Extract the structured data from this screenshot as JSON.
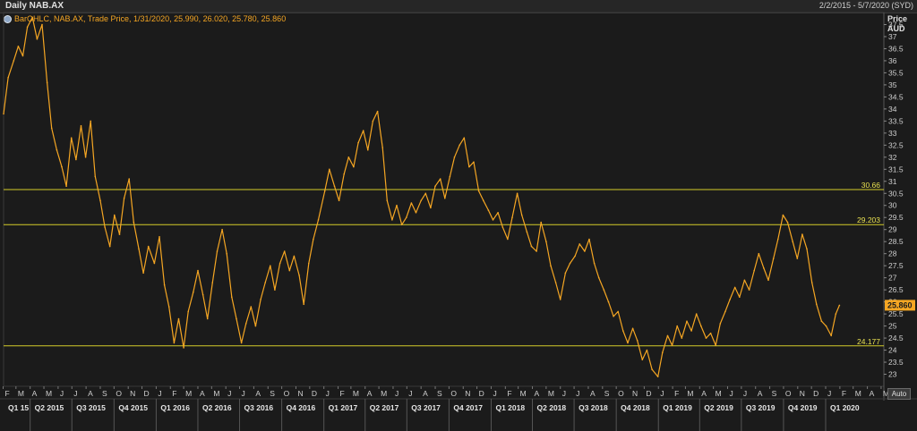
{
  "header": {
    "title": "Daily NAB.AX",
    "date_range": "2/2/2015 - 5/7/2020 (SYD)",
    "legend": "BarOHLC, NAB.AX, Trade Price, 1/31/2020, 25.990, 26.020, 25.780, 25.860",
    "axis_title_line1": "Price",
    "axis_title_line2": "AUD",
    "auto_label": "Auto"
  },
  "colors": {
    "background": "#1b1b1b",
    "price_line": "#f5a623",
    "horizontal_lines": "#d4cc2a",
    "last_price_badge": "#f5a623"
  },
  "chart_data": {
    "type": "line",
    "title": "Daily NAB.AX",
    "ylabel": "Price AUD",
    "ylim": [
      22.5,
      38
    ],
    "x_range": [
      "2015-02-02",
      "2020-05-07"
    ],
    "y_ticks": [
      "23",
      "23.5",
      "24",
      "24.5",
      "25",
      "25.5",
      "26",
      "26.5",
      "27",
      "27.5",
      "28",
      "28.5",
      "29",
      "29.5",
      "30",
      "30.5",
      "31",
      "31.5",
      "32",
      "32.5",
      "33",
      "33.5",
      "34",
      "34.5",
      "35",
      "35.5",
      "36",
      "36.5",
      "37",
      "37.5"
    ],
    "months": [
      "F",
      "M",
      "A",
      "M",
      "J",
      "J",
      "A",
      "S",
      "O",
      "N",
      "D",
      "J",
      "F",
      "M",
      "A",
      "M",
      "J",
      "J",
      "A",
      "S",
      "O",
      "N",
      "D",
      "J",
      "F",
      "M",
      "A",
      "M",
      "J",
      "J",
      "A",
      "S",
      "O",
      "N",
      "D",
      "J",
      "F",
      "M",
      "A",
      "M",
      "J",
      "J",
      "A",
      "S",
      "O",
      "N",
      "D",
      "J",
      "F",
      "M",
      "A",
      "M",
      "J",
      "J",
      "A",
      "S",
      "O",
      "N",
      "D",
      "J",
      "F",
      "M",
      "A",
      "M"
    ],
    "quarters": [
      "Q1 15",
      "Q2 2015",
      "Q3 2015",
      "Q4 2015",
      "Q1 2016",
      "Q2 2016",
      "Q3 2016",
      "Q4 2016",
      "Q1 2017",
      "Q2 2017",
      "Q3 2017",
      "Q4 2017",
      "Q1 2018",
      "Q2 2018",
      "Q3 2018",
      "Q4 2018",
      "Q1 2019",
      "Q2 2019",
      "Q3 2019",
      "Q4 2019",
      "Q1 2020"
    ],
    "horizontal_lines": [
      {
        "value": 30.66,
        "label": "30.66"
      },
      {
        "value": 29.203,
        "label": "29.203"
      },
      {
        "value": 24.177,
        "label": "24.177"
      }
    ],
    "last_value": {
      "value": 25.86,
      "label": "25.860"
    },
    "series": [
      {
        "values": [
          [
            "2015-02-02",
            33.8
          ],
          [
            "2015-02-12",
            35.3
          ],
          [
            "2015-02-24",
            36.0
          ],
          [
            "2015-03-06",
            36.6
          ],
          [
            "2015-03-16",
            36.2
          ],
          [
            "2015-03-26",
            37.4
          ],
          [
            "2015-04-06",
            37.8
          ],
          [
            "2015-04-16",
            36.9
          ],
          [
            "2015-04-27",
            37.5
          ],
          [
            "2015-05-08",
            35.1
          ],
          [
            "2015-05-18",
            33.2
          ],
          [
            "2015-05-29",
            32.3
          ],
          [
            "2015-06-09",
            31.6
          ],
          [
            "2015-06-19",
            30.8
          ],
          [
            "2015-06-30",
            32.8
          ],
          [
            "2015-07-10",
            31.9
          ],
          [
            "2015-07-21",
            33.3
          ],
          [
            "2015-07-31",
            32.0
          ],
          [
            "2015-08-11",
            33.5
          ],
          [
            "2015-08-21",
            31.2
          ],
          [
            "2015-09-01",
            30.2
          ],
          [
            "2015-09-11",
            29.1
          ],
          [
            "2015-09-22",
            28.3
          ],
          [
            "2015-10-02",
            29.6
          ],
          [
            "2015-10-13",
            28.8
          ],
          [
            "2015-10-23",
            30.3
          ],
          [
            "2015-11-03",
            31.1
          ],
          [
            "2015-11-13",
            29.3
          ],
          [
            "2015-11-24",
            28.2
          ],
          [
            "2015-12-04",
            27.2
          ],
          [
            "2015-12-15",
            28.3
          ],
          [
            "2015-12-28",
            27.6
          ],
          [
            "2016-01-08",
            28.7
          ],
          [
            "2016-01-19",
            26.7
          ],
          [
            "2016-01-29",
            25.8
          ],
          [
            "2016-02-09",
            24.3
          ],
          [
            "2016-02-19",
            25.3
          ],
          [
            "2016-03-01",
            24.1
          ],
          [
            "2016-03-11",
            25.6
          ],
          [
            "2016-03-22",
            26.4
          ],
          [
            "2016-04-01",
            27.3
          ],
          [
            "2016-04-12",
            26.3
          ],
          [
            "2016-04-22",
            25.3
          ],
          [
            "2016-05-03",
            26.8
          ],
          [
            "2016-05-13",
            28.1
          ],
          [
            "2016-05-24",
            29.0
          ],
          [
            "2016-06-03",
            28.0
          ],
          [
            "2016-06-14",
            26.2
          ],
          [
            "2016-06-24",
            25.3
          ],
          [
            "2016-07-05",
            24.3
          ],
          [
            "2016-07-15",
            25.1
          ],
          [
            "2016-07-26",
            25.8
          ],
          [
            "2016-08-05",
            25.0
          ],
          [
            "2016-08-16",
            26.1
          ],
          [
            "2016-08-26",
            26.8
          ],
          [
            "2016-09-06",
            27.5
          ],
          [
            "2016-09-16",
            26.5
          ],
          [
            "2016-09-27",
            27.6
          ],
          [
            "2016-10-07",
            28.1
          ],
          [
            "2016-10-18",
            27.3
          ],
          [
            "2016-10-28",
            27.9
          ],
          [
            "2016-11-08",
            27.1
          ],
          [
            "2016-11-18",
            25.9
          ],
          [
            "2016-11-29",
            27.6
          ],
          [
            "2016-12-09",
            28.6
          ],
          [
            "2016-12-20",
            29.4
          ],
          [
            "2017-01-03",
            30.6
          ],
          [
            "2017-01-13",
            31.5
          ],
          [
            "2017-01-24",
            30.8
          ],
          [
            "2017-02-03",
            30.2
          ],
          [
            "2017-02-14",
            31.3
          ],
          [
            "2017-02-24",
            32.0
          ],
          [
            "2017-03-07",
            31.6
          ],
          [
            "2017-03-17",
            32.6
          ],
          [
            "2017-03-28",
            33.1
          ],
          [
            "2017-04-07",
            32.3
          ],
          [
            "2017-04-18",
            33.5
          ],
          [
            "2017-04-28",
            33.9
          ],
          [
            "2017-05-09",
            32.4
          ],
          [
            "2017-05-19",
            30.2
          ],
          [
            "2017-05-30",
            29.4
          ],
          [
            "2017-06-09",
            30.0
          ],
          [
            "2017-06-20",
            29.2
          ],
          [
            "2017-06-30",
            29.5
          ],
          [
            "2017-07-11",
            30.1
          ],
          [
            "2017-07-21",
            29.7
          ],
          [
            "2017-08-01",
            30.2
          ],
          [
            "2017-08-11",
            30.5
          ],
          [
            "2017-08-22",
            29.9
          ],
          [
            "2017-09-01",
            30.8
          ],
          [
            "2017-09-12",
            31.1
          ],
          [
            "2017-09-22",
            30.3
          ],
          [
            "2017-10-03",
            31.2
          ],
          [
            "2017-10-13",
            32.0
          ],
          [
            "2017-10-24",
            32.5
          ],
          [
            "2017-11-03",
            32.8
          ],
          [
            "2017-11-14",
            31.6
          ],
          [
            "2017-11-24",
            31.8
          ],
          [
            "2017-12-05",
            30.6
          ],
          [
            "2017-12-15",
            30.2
          ],
          [
            "2017-12-26",
            29.8
          ],
          [
            "2018-01-05",
            29.4
          ],
          [
            "2018-01-16",
            29.7
          ],
          [
            "2018-01-26",
            29.1
          ],
          [
            "2018-02-06",
            28.6
          ],
          [
            "2018-02-16",
            29.5
          ],
          [
            "2018-02-27",
            30.5
          ],
          [
            "2018-03-09",
            29.6
          ],
          [
            "2018-03-20",
            28.9
          ],
          [
            "2018-03-30",
            28.3
          ],
          [
            "2018-04-10",
            28.1
          ],
          [
            "2018-04-20",
            29.3
          ],
          [
            "2018-05-01",
            28.5
          ],
          [
            "2018-05-11",
            27.5
          ],
          [
            "2018-05-22",
            26.8
          ],
          [
            "2018-06-01",
            26.1
          ],
          [
            "2018-06-12",
            27.2
          ],
          [
            "2018-06-22",
            27.6
          ],
          [
            "2018-07-03",
            27.9
          ],
          [
            "2018-07-13",
            28.4
          ],
          [
            "2018-07-24",
            28.1
          ],
          [
            "2018-08-03",
            28.6
          ],
          [
            "2018-08-14",
            27.6
          ],
          [
            "2018-08-24",
            27.0
          ],
          [
            "2018-09-04",
            26.5
          ],
          [
            "2018-09-14",
            26.0
          ],
          [
            "2018-09-25",
            25.4
          ],
          [
            "2018-10-05",
            25.6
          ],
          [
            "2018-10-16",
            24.8
          ],
          [
            "2018-10-26",
            24.3
          ],
          [
            "2018-11-06",
            24.9
          ],
          [
            "2018-11-16",
            24.4
          ],
          [
            "2018-11-27",
            23.6
          ],
          [
            "2018-12-07",
            24.0
          ],
          [
            "2018-12-18",
            23.2
          ],
          [
            "2018-12-31",
            22.9
          ],
          [
            "2019-01-10",
            23.9
          ],
          [
            "2019-01-21",
            24.6
          ],
          [
            "2019-01-31",
            24.2
          ],
          [
            "2019-02-11",
            25.0
          ],
          [
            "2019-02-21",
            24.5
          ],
          [
            "2019-03-04",
            25.2
          ],
          [
            "2019-03-14",
            24.8
          ],
          [
            "2019-03-25",
            25.5
          ],
          [
            "2019-04-04",
            25.0
          ],
          [
            "2019-04-15",
            24.5
          ],
          [
            "2019-04-25",
            24.7
          ],
          [
            "2019-05-06",
            24.2
          ],
          [
            "2019-05-16",
            25.1
          ],
          [
            "2019-05-27",
            25.6
          ],
          [
            "2019-06-06",
            26.1
          ],
          [
            "2019-06-17",
            26.6
          ],
          [
            "2019-06-27",
            26.2
          ],
          [
            "2019-07-08",
            26.9
          ],
          [
            "2019-07-18",
            26.5
          ],
          [
            "2019-07-29",
            27.3
          ],
          [
            "2019-08-08",
            28.0
          ],
          [
            "2019-08-19",
            27.4
          ],
          [
            "2019-08-29",
            26.9
          ],
          [
            "2019-09-09",
            27.8
          ],
          [
            "2019-09-19",
            28.6
          ],
          [
            "2019-09-30",
            29.6
          ],
          [
            "2019-10-10",
            29.3
          ],
          [
            "2019-10-21",
            28.5
          ],
          [
            "2019-10-31",
            27.8
          ],
          [
            "2019-11-11",
            28.8
          ],
          [
            "2019-11-21",
            28.2
          ],
          [
            "2019-12-02",
            26.8
          ],
          [
            "2019-12-12",
            25.9
          ],
          [
            "2019-12-23",
            25.2
          ],
          [
            "2020-01-02",
            25.0
          ],
          [
            "2020-01-13",
            24.6
          ],
          [
            "2020-01-23",
            25.5
          ],
          [
            "2020-01-31",
            25.86
          ]
        ]
      }
    ]
  }
}
